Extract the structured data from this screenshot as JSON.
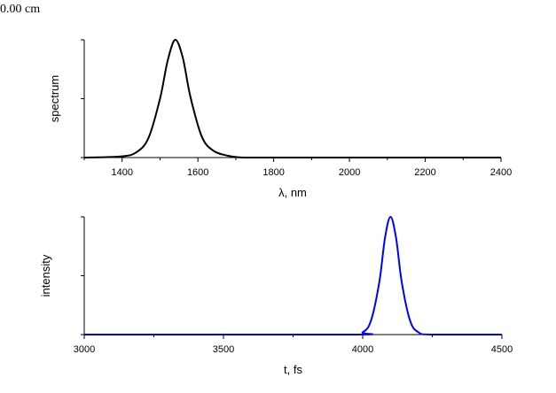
{
  "corner_label": "0.00 cm",
  "chart_data": [
    {
      "type": "line",
      "title": "",
      "xlabel": "λ, nm",
      "ylabel": "spectrum",
      "xlim": [
        1300,
        2400
      ],
      "ylim": [
        0,
        1
      ],
      "x_ticks": [
        1400,
        1600,
        1800,
        2000,
        2200,
        2400
      ],
      "x_minor_ticks": [
        1300,
        1500,
        1700,
        1900,
        2100,
        2300
      ],
      "y_ticks": [
        0,
        0.5,
        1
      ],
      "y_tick_labels": [
        "",
        "",
        ""
      ],
      "grid": false,
      "color": "#000000",
      "series": [
        {
          "name": "spectrum",
          "x": [
            1300,
            1400,
            1440,
            1470,
            1500,
            1520,
            1540,
            1560,
            1580,
            1610,
            1640,
            1680,
            1720,
            1800,
            2400
          ],
          "values": [
            0.0,
            0.01,
            0.05,
            0.17,
            0.5,
            0.82,
            1.0,
            0.85,
            0.52,
            0.18,
            0.06,
            0.015,
            0.0,
            0.0,
            0.0
          ]
        }
      ]
    },
    {
      "type": "line",
      "title": "",
      "xlabel": "t, fs",
      "ylabel": "intensity",
      "xlim": [
        3000,
        4500
      ],
      "ylim": [
        0,
        1
      ],
      "x_ticks": [
        3000,
        3500,
        4000,
        4500
      ],
      "x_minor_ticks": [
        3250,
        3750,
        4250
      ],
      "y_ticks": [
        0,
        0.5,
        1
      ],
      "y_tick_labels": [
        "",
        "",
        ""
      ],
      "grid": false,
      "color": "#0000ff",
      "series": [
        {
          "name": "intensity",
          "x": [
            3000,
            3950,
            4000,
            4030,
            4060,
            4080,
            4100,
            4120,
            4140,
            4170,
            4200,
            4250,
            4500
          ],
          "values": [
            0.0,
            0.0,
            0.02,
            0.12,
            0.45,
            0.82,
            1.0,
            0.82,
            0.45,
            0.12,
            0.02,
            0.0,
            0.0
          ]
        }
      ]
    }
  ]
}
